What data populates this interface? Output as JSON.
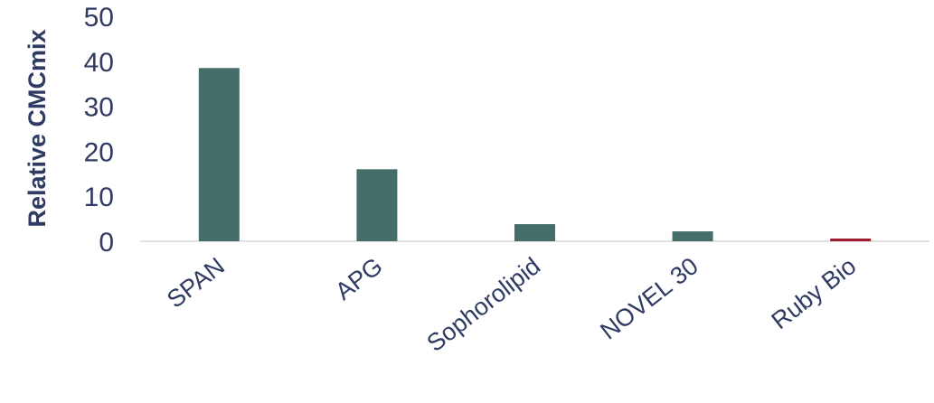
{
  "chart_data": {
    "type": "bar",
    "title": "",
    "xlabel": "",
    "ylabel": "Relative CMCmix",
    "categories": [
      "SPAN",
      "APG",
      "Sophorolipid",
      "NOVEL 30",
      "Ruby Bio"
    ],
    "values": [
      38.5,
      16,
      3.8,
      2.2,
      0.6
    ],
    "ylim": [
      0,
      50
    ],
    "yticks": [
      "0",
      "10",
      "20",
      "30",
      "40",
      "50"
    ],
    "grid": false,
    "legend": "none",
    "colors": {
      "bar": "#456e6b",
      "highlight_bar": "#a01c2c",
      "text": "#2f3b63",
      "axis_line": "#d9d9d9"
    },
    "highlight_index": 4
  }
}
